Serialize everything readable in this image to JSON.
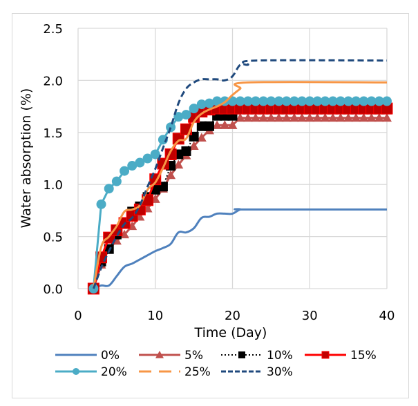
{
  "chart_data": {
    "type": "line",
    "title": "",
    "xlabel": "Time (Day)",
    "ylabel": "Water absorption (%)",
    "xlim": [
      0,
      40
    ],
    "ylim": [
      0,
      2.5
    ],
    "xticks": [
      0,
      10,
      20,
      30,
      40
    ],
    "yticks": [
      0.0,
      0.5,
      1.0,
      1.5,
      2.0,
      2.5
    ],
    "xtick_labels": [
      "0",
      "10",
      "20",
      "30",
      "40"
    ],
    "ytick_labels": [
      "0.0",
      "0.5",
      "1.0",
      "1.5",
      "2.0",
      "2.5"
    ],
    "grid": "horizontal and vertical major gridlines",
    "legend_position": "bottom",
    "series": [
      {
        "name": "0%",
        "color": "#4f81bd",
        "style": "solid-smooth",
        "marker": "none",
        "x": [
          2,
          3,
          4,
          5,
          6,
          7,
          8,
          9,
          10,
          11,
          12,
          13,
          14,
          15,
          16,
          17,
          18,
          19,
          20,
          21,
          22,
          40
        ],
        "y": [
          0.0,
          0.03,
          0.03,
          0.12,
          0.21,
          0.24,
          0.28,
          0.32,
          0.36,
          0.39,
          0.43,
          0.54,
          0.54,
          0.58,
          0.68,
          0.69,
          0.72,
          0.72,
          0.72,
          0.76,
          0.76,
          0.76
        ]
      },
      {
        "name": "5%",
        "color": "#c0504d",
        "style": "solid",
        "marker": "triangle",
        "x": [
          2,
          3,
          4,
          5,
          6,
          7,
          8,
          9,
          10,
          11,
          12,
          13,
          14,
          15,
          16,
          17,
          18,
          19,
          20,
          21,
          22,
          23,
          24,
          25,
          26,
          27,
          28,
          29,
          30,
          31,
          32,
          33,
          34,
          35,
          36,
          37,
          38,
          39,
          40
        ],
        "y": [
          0.0,
          0.23,
          0.38,
          0.46,
          0.52,
          0.6,
          0.69,
          0.77,
          0.86,
          0.96,
          1.09,
          1.19,
          1.28,
          1.37,
          1.45,
          1.52,
          1.57,
          1.57,
          1.57,
          1.64,
          1.64,
          1.64,
          1.64,
          1.64,
          1.64,
          1.64,
          1.64,
          1.64,
          1.64,
          1.64,
          1.64,
          1.64,
          1.64,
          1.64,
          1.64,
          1.64,
          1.64,
          1.64,
          1.64
        ]
      },
      {
        "name": "10%",
        "color": "#000000",
        "style": "dotted",
        "marker": "square",
        "x": [
          2,
          3,
          4,
          5,
          6,
          7,
          8,
          9,
          10,
          11,
          12,
          13,
          14,
          15,
          16,
          17,
          18,
          19,
          20,
          21,
          22,
          23,
          24,
          25,
          26,
          27,
          28,
          29,
          30,
          31,
          32,
          33,
          34,
          35,
          36,
          37,
          38,
          39,
          40
        ],
        "y": [
          0.0,
          0.26,
          0.38,
          0.52,
          0.63,
          0.74,
          0.79,
          0.88,
          0.95,
          0.98,
          1.18,
          1.29,
          1.32,
          1.46,
          1.56,
          1.56,
          1.66,
          1.66,
          1.66,
          1.72,
          1.72,
          1.72,
          1.72,
          1.72,
          1.72,
          1.72,
          1.72,
          1.72,
          1.72,
          1.72,
          1.72,
          1.72,
          1.72,
          1.72,
          1.72,
          1.72,
          1.72,
          1.72,
          1.72
        ]
      },
      {
        "name": "15%",
        "color": "#ff0000",
        "marker_color": "#c00000",
        "style": "solid",
        "marker": "square",
        "x": [
          2,
          3,
          4,
          5,
          6,
          7,
          8,
          9,
          10,
          11,
          12,
          13,
          14,
          15,
          16,
          17,
          18,
          19,
          20,
          21,
          22,
          23,
          24,
          25,
          26,
          27,
          28,
          29,
          30,
          31,
          32,
          33,
          34,
          35,
          36,
          37,
          38,
          39,
          40
        ],
        "y": [
          0.0,
          0.3,
          0.49,
          0.56,
          0.63,
          0.7,
          0.76,
          0.85,
          1.05,
          1.2,
          1.29,
          1.44,
          1.53,
          1.65,
          1.7,
          1.72,
          1.73,
          1.73,
          1.73,
          1.73,
          1.73,
          1.73,
          1.73,
          1.73,
          1.73,
          1.73,
          1.73,
          1.73,
          1.73,
          1.73,
          1.73,
          1.73,
          1.73,
          1.73,
          1.73,
          1.73,
          1.73,
          1.73,
          1.73
        ]
      },
      {
        "name": "20%",
        "color": "#4bacc6",
        "style": "solid",
        "marker": "circle",
        "x": [
          2,
          3,
          4,
          5,
          6,
          7,
          8,
          9,
          10,
          11,
          12,
          13,
          14,
          15,
          16,
          17,
          18,
          19,
          20,
          21,
          22,
          23,
          24,
          25,
          26,
          27,
          28,
          29,
          30,
          31,
          32,
          33,
          34,
          35,
          36,
          37,
          38,
          39,
          40
        ],
        "y": [
          0.0,
          0.81,
          0.96,
          1.03,
          1.13,
          1.18,
          1.21,
          1.25,
          1.29,
          1.43,
          1.55,
          1.65,
          1.67,
          1.73,
          1.77,
          1.78,
          1.8,
          1.8,
          1.8,
          1.8,
          1.8,
          1.8,
          1.8,
          1.8,
          1.8,
          1.8,
          1.8,
          1.8,
          1.8,
          1.8,
          1.8,
          1.8,
          1.8,
          1.8,
          1.8,
          1.8,
          1.8,
          1.8,
          1.8
        ]
      },
      {
        "name": "25%",
        "color": "#f79646",
        "style": "solid-smooth",
        "marker": "none",
        "legend_style": "long-dash",
        "x": [
          2,
          3,
          4,
          5,
          6,
          7,
          8,
          9,
          10,
          11,
          12,
          13,
          14,
          15,
          16,
          17,
          18,
          19,
          20,
          21,
          22,
          40
        ],
        "y": [
          0.0,
          0.4,
          0.5,
          0.6,
          0.74,
          0.76,
          0.8,
          0.95,
          1.02,
          1.16,
          1.32,
          1.42,
          1.44,
          1.6,
          1.68,
          1.72,
          1.75,
          1.79,
          1.86,
          1.92,
          1.98,
          1.98
        ]
      },
      {
        "name": "30%",
        "color": "#1f497d",
        "style": "dashed-smooth",
        "marker": "none",
        "x": [
          2,
          3,
          4,
          5,
          6,
          7,
          8,
          9,
          10,
          11,
          12,
          13,
          14,
          15,
          16,
          17,
          18,
          19,
          20,
          21,
          22,
          23,
          40
        ],
        "y": [
          0.0,
          0.2,
          0.36,
          0.5,
          0.62,
          0.68,
          0.8,
          0.98,
          1.15,
          1.35,
          1.55,
          1.78,
          1.92,
          1.98,
          2.01,
          2.01,
          2.01,
          2.0,
          2.04,
          2.15,
          2.15,
          2.19,
          2.19
        ]
      }
    ]
  }
}
